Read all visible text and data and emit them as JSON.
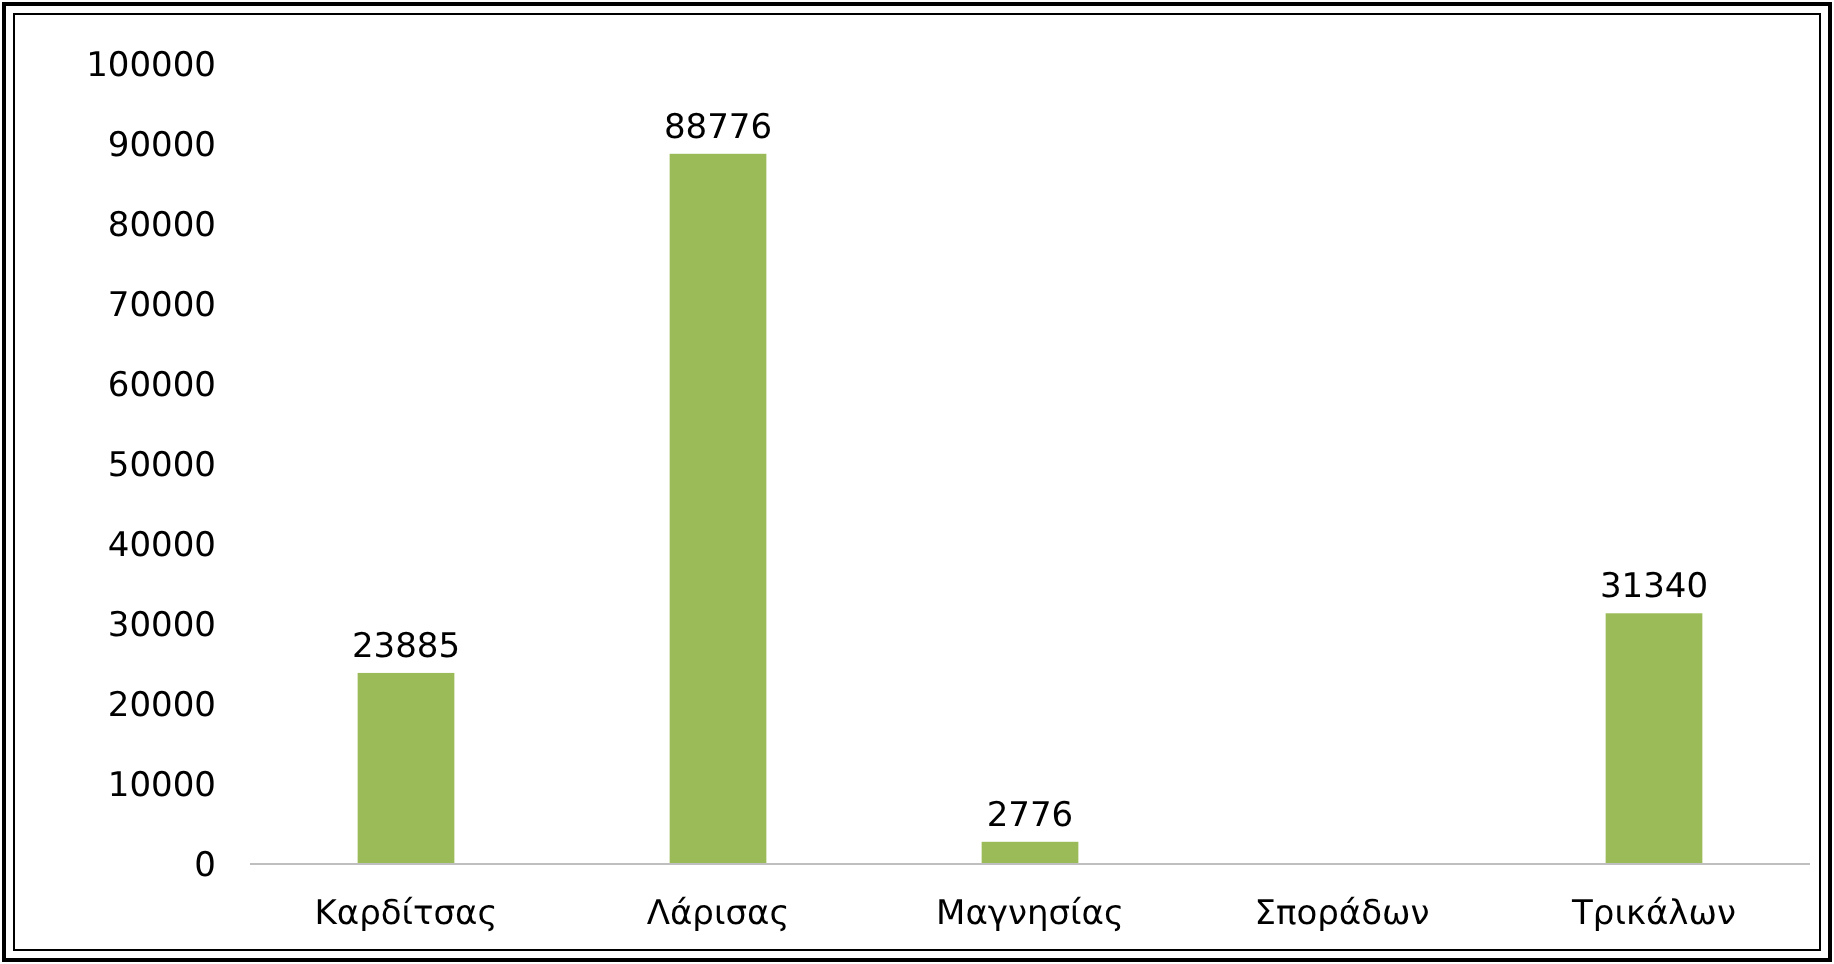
{
  "chart_data": {
    "type": "bar",
    "categories": [
      "Καρδίτσας",
      "Λάρισας",
      "Μαγνησίας",
      "Σποράδων",
      "Τρικάλων"
    ],
    "values": [
      23885,
      88776,
      2776,
      null,
      31340
    ],
    "color": "#9bbb59",
    "ylim": [
      0,
      100000
    ],
    "yticks": [
      0,
      10000,
      20000,
      30000,
      40000,
      50000,
      60000,
      70000,
      80000,
      90000,
      100000
    ],
    "data_labels": true,
    "grid": false
  }
}
